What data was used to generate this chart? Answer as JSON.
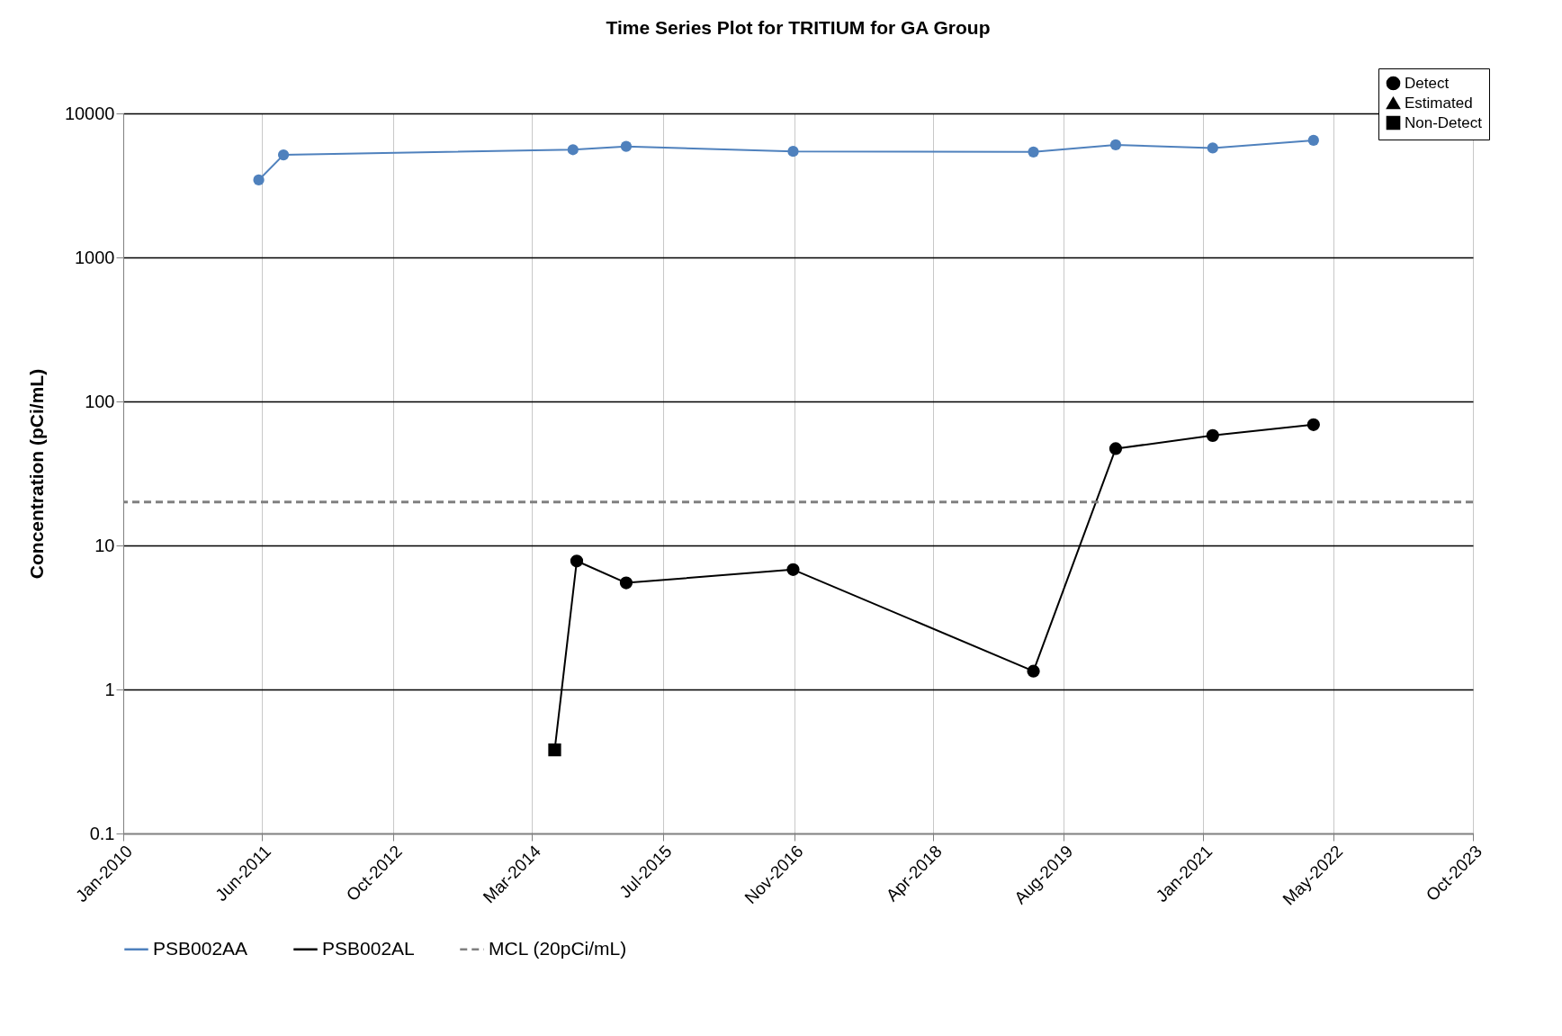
{
  "chart_data": {
    "type": "line",
    "title": "Time Series Plot for TRITIUM for GA Group",
    "ylabel": "Concentration (pCi/mL)",
    "series": [
      {
        "name": "PSB002AA",
        "color": "#4f81bd",
        "marker": "circle",
        "x": [
          "2011-05-20",
          "2011-08-20",
          "2014-08-01",
          "2015-02-15",
          "2016-10-28",
          "2019-04-10",
          "2020-02-10",
          "2021-02-05",
          "2022-02-15"
        ],
        "values": [
          3450,
          5150,
          5600,
          5900,
          5450,
          5400,
          6050,
          5750,
          6500
        ]
      },
      {
        "name": "PSB002AL",
        "color": "#000000",
        "marker": "none",
        "x": [
          "2014-05-25",
          "2014-08-15",
          "2015-02-15",
          "2016-10-28",
          "2019-04-10",
          "2020-02-10",
          "2021-02-05",
          "2022-02-15"
        ],
        "values": [
          0.38,
          7.8,
          5.5,
          6.8,
          1.34,
          47,
          58,
          69
        ]
      },
      {
        "name": "Detect",
        "type": "scatter",
        "color": "#000000",
        "marker": "circle",
        "x": [
          "2014-08-15",
          "2015-02-15",
          "2016-10-28",
          "2019-04-10",
          "2020-02-10",
          "2021-02-05",
          "2022-02-15"
        ],
        "values": [
          7.8,
          5.5,
          6.8,
          1.34,
          47,
          58,
          69
        ]
      },
      {
        "name": "Estimated",
        "type": "scatter",
        "color": "#000000",
        "marker": "triangle"
      },
      {
        "name": "Non-Detect",
        "type": "scatter",
        "color": "#000000",
        "marker": "square",
        "x": [
          "2014-05-25"
        ],
        "values": [
          0.38
        ]
      }
    ],
    "ref_lines": [
      {
        "axis": "y",
        "value": 20,
        "label": "MCL (20pCi/mL)",
        "color": "#808080",
        "line_style": "dashed"
      }
    ],
    "log": "y",
    "ylim": [
      0.1,
      10000
    ],
    "yticks": [
      0.1,
      1,
      10,
      100,
      1000,
      10000
    ],
    "xlim": [
      "2010-01",
      "2023-10"
    ],
    "xticks": [
      {
        "value": "2010-01",
        "label": "Jan-2010"
      },
      {
        "value": "2011-06",
        "label": "Jun-2011"
      },
      {
        "value": "2012-10",
        "label": "Oct-2012"
      },
      {
        "value": "2014-03",
        "label": "Mar-2014"
      },
      {
        "value": "2015-07",
        "label": "Jul-2015"
      },
      {
        "value": "2016-11",
        "label": "Nov-2016"
      },
      {
        "value": "2018-04",
        "label": "Apr-2018"
      },
      {
        "value": "2019-08",
        "label": "Aug-2019"
      },
      {
        "value": "2021-01",
        "label": "Jan-2021"
      },
      {
        "value": "2022-05",
        "label": "May-2022"
      },
      {
        "value": "2023-10",
        "label": "Oct-2023"
      }
    ],
    "grid": true,
    "legend": "bottom"
  }
}
